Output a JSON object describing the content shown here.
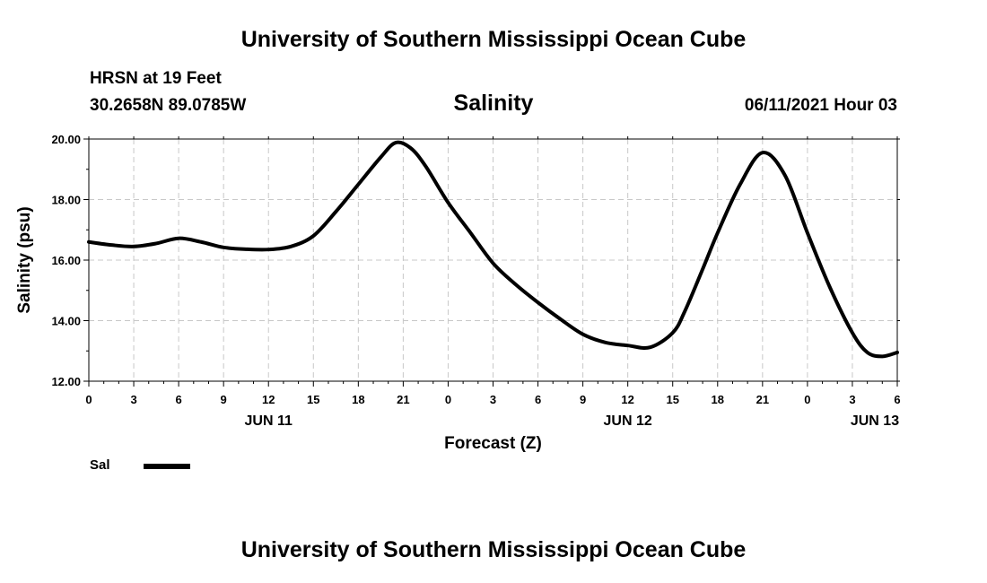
{
  "header": {
    "title": "University of Southern Mississippi Ocean Cube",
    "station": "HRSN at 19 Feet",
    "coords": "30.2658N  89.0785W",
    "variable": "Salinity",
    "datetime": "06/11/2021 Hour 03"
  },
  "footer": {
    "title": "University of Southern Mississippi Ocean Cube"
  },
  "legend": {
    "label": "Sal",
    "color": "#000000"
  },
  "chart_data": {
    "type": "line",
    "title": "Salinity",
    "xlabel": "Forecast (Z)",
    "ylabel": "Salinity (psu)",
    "xlim": [
      0,
      54
    ],
    "ylim": [
      12,
      20
    ],
    "grid": true,
    "x_tick_hours": [
      0,
      3,
      6,
      9,
      12,
      15,
      18,
      21,
      24,
      27,
      30,
      33,
      36,
      39,
      42,
      45,
      48,
      51,
      54
    ],
    "x_tick_labels": [
      "0",
      "3",
      "6",
      "9",
      "12",
      "15",
      "18",
      "21",
      "0",
      "3",
      "6",
      "9",
      "12",
      "15",
      "18",
      "21",
      "0",
      "3",
      "6"
    ],
    "date_labels": [
      {
        "hour": 12,
        "label": "JUN 11"
      },
      {
        "hour": 36,
        "label": "JUN 12"
      },
      {
        "hour": 52.5,
        "label": "JUN 13"
      }
    ],
    "y_ticks": [
      12,
      14,
      16,
      18,
      20
    ],
    "y_tick_labels": [
      "12.00",
      "14.00",
      "16.00",
      "18.00",
      "20.00"
    ],
    "series": [
      {
        "name": "Sal",
        "color": "#000000",
        "x": [
          0,
          1.5,
          3,
          4.5,
          6,
          7.5,
          9,
          10.5,
          12,
          13.5,
          15,
          16.5,
          18,
          19.5,
          20.5,
          21.5,
          22.5,
          24,
          25.5,
          27,
          28.5,
          30,
          31.5,
          33,
          34.5,
          36,
          37.5,
          39,
          39.8,
          41,
          42,
          43.5,
          45,
          46.5,
          48,
          49.5,
          51,
          52,
          53,
          54
        ],
        "values": [
          16.6,
          16.5,
          16.45,
          16.55,
          16.72,
          16.6,
          16.42,
          16.36,
          16.35,
          16.45,
          16.8,
          17.6,
          18.5,
          19.4,
          19.88,
          19.7,
          19.1,
          17.9,
          16.9,
          15.9,
          15.2,
          14.6,
          14.05,
          13.55,
          13.28,
          13.18,
          13.12,
          13.6,
          14.3,
          15.7,
          16.9,
          18.5,
          19.55,
          18.8,
          16.9,
          15.1,
          13.6,
          12.95,
          12.82,
          12.95
        ]
      }
    ]
  }
}
